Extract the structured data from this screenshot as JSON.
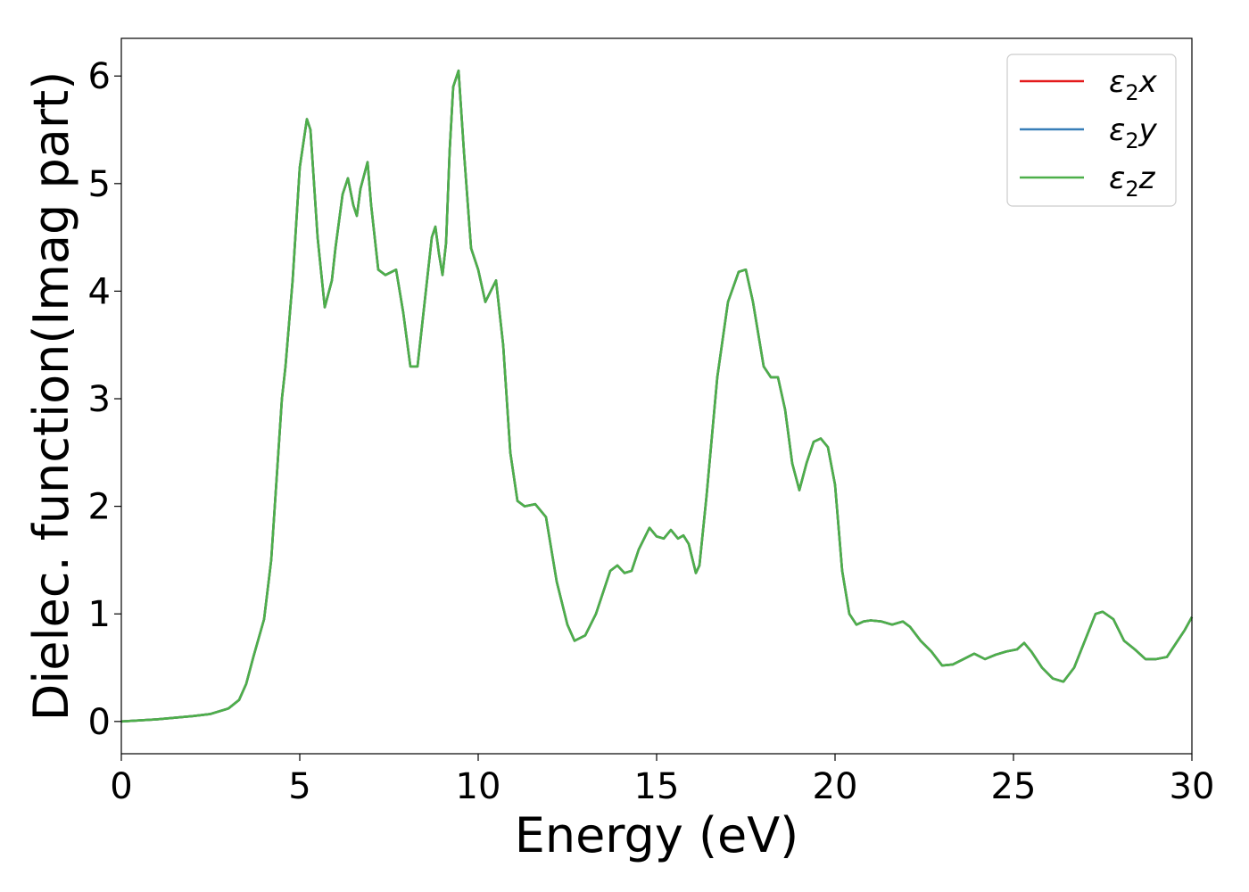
{
  "chart_data": {
    "type": "line",
    "title": "",
    "xlabel": "Energy (eV)",
    "ylabel": "Dielec. function(Imag part)",
    "xlim": [
      0,
      30
    ],
    "ylim": [
      -0.3,
      6.35
    ],
    "xticks": [
      0,
      5,
      10,
      15,
      20,
      25,
      30
    ],
    "yticks": [
      0,
      1,
      2,
      3,
      4,
      5,
      6
    ],
    "grid": false,
    "legend_position": "top-right",
    "series": [
      {
        "name": "ε2x",
        "legend_main": "ε",
        "legend_sub": "2",
        "legend_suffix": "x",
        "color": "#e41a1c",
        "x": [
          0,
          1,
          2,
          2.5,
          3,
          3.3,
          3.5,
          3.7,
          4.0,
          4.2,
          4.4,
          4.5,
          4.6,
          4.8,
          5.0,
          5.2,
          5.3,
          5.5,
          5.7,
          5.9,
          6.0,
          6.2,
          6.35,
          6.5,
          6.6,
          6.7,
          6.9,
          7.0,
          7.2,
          7.4,
          7.7,
          7.9,
          8.1,
          8.3,
          8.5,
          8.7,
          8.8,
          8.9,
          9.0,
          9.1,
          9.2,
          9.3,
          9.45,
          9.6,
          9.8,
          10.0,
          10.2,
          10.35,
          10.5,
          10.7,
          10.9,
          11.1,
          11.3,
          11.6,
          11.9,
          12.2,
          12.5,
          12.7,
          13.0,
          13.3,
          13.7,
          13.9,
          14.1,
          14.3,
          14.5,
          14.8,
          15.0,
          15.2,
          15.4,
          15.6,
          15.75,
          15.9,
          16.1,
          16.2,
          16.4,
          16.7,
          17.0,
          17.3,
          17.5,
          17.7,
          18.0,
          18.2,
          18.4,
          18.6,
          18.8,
          19.0,
          19.2,
          19.4,
          19.6,
          19.8,
          20.0,
          20.2,
          20.4,
          20.6,
          20.8,
          21.0,
          21.3,
          21.6,
          21.9,
          22.1,
          22.4,
          22.7,
          23.0,
          23.3,
          23.6,
          23.9,
          24.2,
          24.5,
          24.8,
          25.1,
          25.3,
          25.5,
          25.8,
          26.1,
          26.4,
          26.7,
          27.0,
          27.3,
          27.5,
          27.8,
          28.1,
          28.4,
          28.7,
          29.0,
          29.3,
          29.6,
          29.8,
          30
        ],
        "y": [
          0.0,
          0.02,
          0.05,
          0.07,
          0.12,
          0.2,
          0.35,
          0.6,
          0.95,
          1.5,
          2.5,
          3.0,
          3.3,
          4.1,
          5.15,
          5.6,
          5.5,
          4.5,
          3.85,
          4.1,
          4.4,
          4.9,
          5.05,
          4.8,
          4.7,
          4.95,
          5.2,
          4.8,
          4.2,
          4.15,
          4.2,
          3.8,
          3.3,
          3.3,
          3.9,
          4.5,
          4.6,
          4.35,
          4.15,
          4.45,
          5.3,
          5.9,
          6.05,
          5.3,
          4.4,
          4.2,
          3.9,
          4.0,
          4.1,
          3.5,
          2.5,
          2.05,
          2.0,
          2.02,
          1.9,
          1.3,
          0.9,
          0.75,
          0.8,
          1.0,
          1.4,
          1.45,
          1.38,
          1.4,
          1.6,
          1.8,
          1.72,
          1.7,
          1.78,
          1.7,
          1.73,
          1.65,
          1.38,
          1.45,
          2.1,
          3.2,
          3.9,
          4.18,
          4.2,
          3.9,
          3.3,
          3.2,
          3.2,
          2.9,
          2.4,
          2.15,
          2.4,
          2.6,
          2.63,
          2.55,
          2.2,
          1.4,
          1.0,
          0.9,
          0.93,
          0.94,
          0.93,
          0.9,
          0.93,
          0.88,
          0.75,
          0.65,
          0.52,
          0.53,
          0.58,
          0.63,
          0.58,
          0.62,
          0.65,
          0.67,
          0.73,
          0.65,
          0.5,
          0.4,
          0.37,
          0.5,
          0.75,
          1.0,
          1.02,
          0.95,
          0.75,
          0.67,
          0.58,
          0.58,
          0.6,
          0.75,
          0.85,
          0.97
        ]
      },
      {
        "name": "ε2y",
        "legend_main": "ε",
        "legend_sub": "2",
        "legend_suffix": "y",
        "color": "#377eb8",
        "x": [
          0,
          1,
          2,
          2.5,
          3,
          3.3,
          3.5,
          3.7,
          4.0,
          4.2,
          4.4,
          4.5,
          4.6,
          4.8,
          5.0,
          5.2,
          5.3,
          5.5,
          5.7,
          5.9,
          6.0,
          6.2,
          6.35,
          6.5,
          6.6,
          6.7,
          6.9,
          7.0,
          7.2,
          7.4,
          7.7,
          7.9,
          8.1,
          8.3,
          8.5,
          8.7,
          8.8,
          8.9,
          9.0,
          9.1,
          9.2,
          9.3,
          9.45,
          9.6,
          9.8,
          10.0,
          10.2,
          10.35,
          10.5,
          10.7,
          10.9,
          11.1,
          11.3,
          11.6,
          11.9,
          12.2,
          12.5,
          12.7,
          13.0,
          13.3,
          13.7,
          13.9,
          14.1,
          14.3,
          14.5,
          14.8,
          15.0,
          15.2,
          15.4,
          15.6,
          15.75,
          15.9,
          16.1,
          16.2,
          16.4,
          16.7,
          17.0,
          17.3,
          17.5,
          17.7,
          18.0,
          18.2,
          18.4,
          18.6,
          18.8,
          19.0,
          19.2,
          19.4,
          19.6,
          19.8,
          20.0,
          20.2,
          20.4,
          20.6,
          20.8,
          21.0,
          21.3,
          21.6,
          21.9,
          22.1,
          22.4,
          22.7,
          23.0,
          23.3,
          23.6,
          23.9,
          24.2,
          24.5,
          24.8,
          25.1,
          25.3,
          25.5,
          25.8,
          26.1,
          26.4,
          26.7,
          27.0,
          27.3,
          27.5,
          27.8,
          28.1,
          28.4,
          28.7,
          29.0,
          29.3,
          29.6,
          29.8,
          30
        ],
        "y": [
          0.0,
          0.02,
          0.05,
          0.07,
          0.12,
          0.2,
          0.35,
          0.6,
          0.95,
          1.5,
          2.5,
          3.0,
          3.3,
          4.1,
          5.15,
          5.6,
          5.5,
          4.5,
          3.85,
          4.1,
          4.4,
          4.9,
          5.05,
          4.8,
          4.7,
          4.95,
          5.2,
          4.8,
          4.2,
          4.15,
          4.2,
          3.8,
          3.3,
          3.3,
          3.9,
          4.5,
          4.6,
          4.35,
          4.15,
          4.45,
          5.3,
          5.9,
          6.05,
          5.3,
          4.4,
          4.2,
          3.9,
          4.0,
          4.1,
          3.5,
          2.5,
          2.05,
          2.0,
          2.02,
          1.9,
          1.3,
          0.9,
          0.75,
          0.8,
          1.0,
          1.4,
          1.45,
          1.38,
          1.4,
          1.6,
          1.8,
          1.72,
          1.7,
          1.78,
          1.7,
          1.73,
          1.65,
          1.38,
          1.45,
          2.1,
          3.2,
          3.9,
          4.18,
          4.2,
          3.9,
          3.3,
          3.2,
          3.2,
          2.9,
          2.4,
          2.15,
          2.4,
          2.6,
          2.63,
          2.55,
          2.2,
          1.4,
          1.0,
          0.9,
          0.93,
          0.94,
          0.93,
          0.9,
          0.93,
          0.88,
          0.75,
          0.65,
          0.52,
          0.53,
          0.58,
          0.63,
          0.58,
          0.62,
          0.65,
          0.67,
          0.73,
          0.65,
          0.5,
          0.4,
          0.37,
          0.5,
          0.75,
          1.0,
          1.02,
          0.95,
          0.75,
          0.67,
          0.58,
          0.58,
          0.6,
          0.75,
          0.85,
          0.97
        ]
      },
      {
        "name": "ε2z",
        "legend_main": "ε",
        "legend_sub": "2",
        "legend_suffix": "z",
        "color": "#4daf4a",
        "x": [
          0,
          1,
          2,
          2.5,
          3,
          3.3,
          3.5,
          3.7,
          4.0,
          4.2,
          4.4,
          4.5,
          4.6,
          4.8,
          5.0,
          5.2,
          5.3,
          5.5,
          5.7,
          5.9,
          6.0,
          6.2,
          6.35,
          6.5,
          6.6,
          6.7,
          6.9,
          7.0,
          7.2,
          7.4,
          7.7,
          7.9,
          8.1,
          8.3,
          8.5,
          8.7,
          8.8,
          8.9,
          9.0,
          9.1,
          9.2,
          9.3,
          9.45,
          9.6,
          9.8,
          10.0,
          10.2,
          10.35,
          10.5,
          10.7,
          10.9,
          11.1,
          11.3,
          11.6,
          11.9,
          12.2,
          12.5,
          12.7,
          13.0,
          13.3,
          13.7,
          13.9,
          14.1,
          14.3,
          14.5,
          14.8,
          15.0,
          15.2,
          15.4,
          15.6,
          15.75,
          15.9,
          16.1,
          16.2,
          16.4,
          16.7,
          17.0,
          17.3,
          17.5,
          17.7,
          18.0,
          18.2,
          18.4,
          18.6,
          18.8,
          19.0,
          19.2,
          19.4,
          19.6,
          19.8,
          20.0,
          20.2,
          20.4,
          20.6,
          20.8,
          21.0,
          21.3,
          21.6,
          21.9,
          22.1,
          22.4,
          22.7,
          23.0,
          23.3,
          23.6,
          23.9,
          24.2,
          24.5,
          24.8,
          25.1,
          25.3,
          25.5,
          25.8,
          26.1,
          26.4,
          26.7,
          27.0,
          27.3,
          27.5,
          27.8,
          28.1,
          28.4,
          28.7,
          29.0,
          29.3,
          29.6,
          29.8,
          30
        ],
        "y": [
          0.0,
          0.02,
          0.05,
          0.07,
          0.12,
          0.2,
          0.35,
          0.6,
          0.95,
          1.5,
          2.5,
          3.0,
          3.3,
          4.1,
          5.15,
          5.6,
          5.5,
          4.5,
          3.85,
          4.1,
          4.4,
          4.9,
          5.05,
          4.8,
          4.7,
          4.95,
          5.2,
          4.8,
          4.2,
          4.15,
          4.2,
          3.8,
          3.3,
          3.3,
          3.9,
          4.5,
          4.6,
          4.35,
          4.15,
          4.45,
          5.3,
          5.9,
          6.05,
          5.3,
          4.4,
          4.2,
          3.9,
          4.0,
          4.1,
          3.5,
          2.5,
          2.05,
          2.0,
          2.02,
          1.9,
          1.3,
          0.9,
          0.75,
          0.8,
          1.0,
          1.4,
          1.45,
          1.38,
          1.4,
          1.6,
          1.8,
          1.72,
          1.7,
          1.78,
          1.7,
          1.73,
          1.65,
          1.38,
          1.45,
          2.1,
          3.2,
          3.9,
          4.18,
          4.2,
          3.9,
          3.3,
          3.2,
          3.2,
          2.9,
          2.4,
          2.15,
          2.4,
          2.6,
          2.63,
          2.55,
          2.2,
          1.4,
          1.0,
          0.9,
          0.93,
          0.94,
          0.93,
          0.9,
          0.93,
          0.88,
          0.75,
          0.65,
          0.52,
          0.53,
          0.58,
          0.63,
          0.58,
          0.62,
          0.65,
          0.67,
          0.73,
          0.65,
          0.5,
          0.4,
          0.37,
          0.5,
          0.75,
          1.0,
          1.02,
          0.95,
          0.75,
          0.67,
          0.58,
          0.58,
          0.6,
          0.75,
          0.85,
          0.97
        ]
      }
    ]
  }
}
